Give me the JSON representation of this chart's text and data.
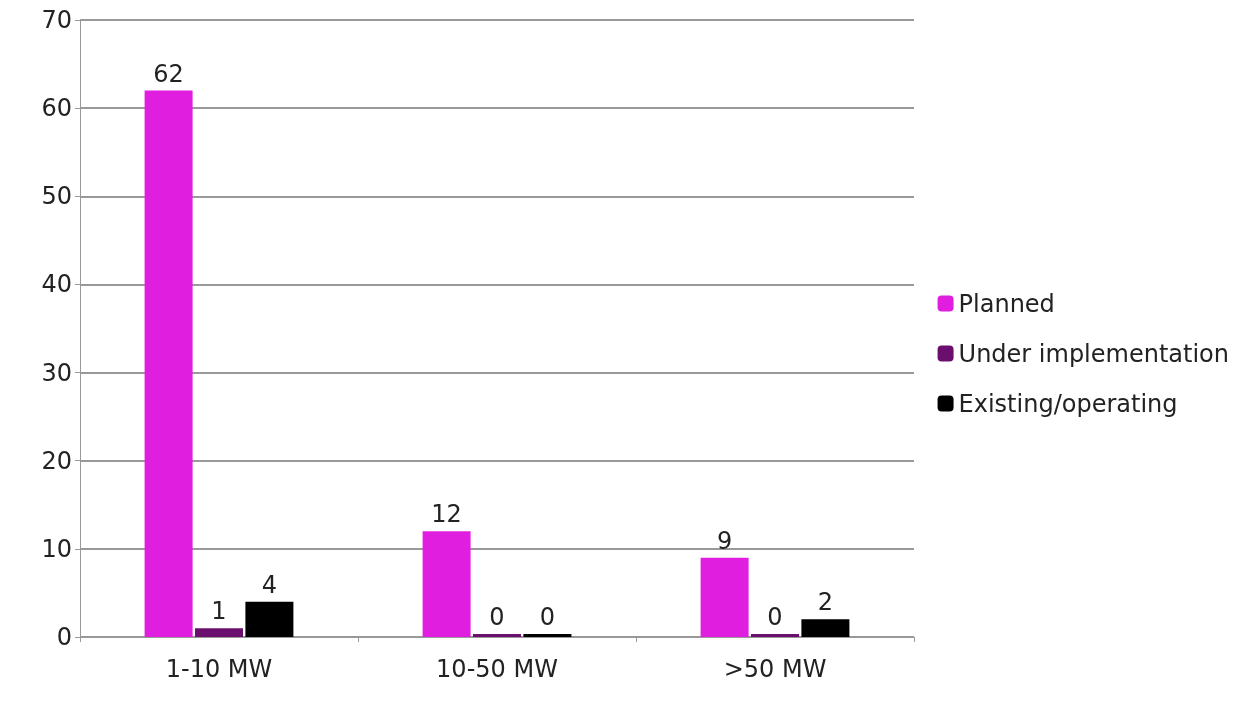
{
  "chart_data": {
    "type": "bar",
    "categories": [
      "1-10 MW",
      "10-50 MW",
      ">50 MW"
    ],
    "series": [
      {
        "name": "Planned",
        "color": "#e01ee0",
        "values": [
          62,
          12,
          9
        ]
      },
      {
        "name": "Under implementation",
        "color": "#6b0f6e",
        "values": [
          1,
          0,
          0
        ]
      },
      {
        "name": "Existing/operating",
        "color": "#000000",
        "values": [
          4,
          0,
          2
        ]
      }
    ],
    "ylim": [
      0,
      70
    ],
    "yticks": [
      0,
      10,
      20,
      30,
      40,
      50,
      60,
      70
    ],
    "grid": "y",
    "legend": "right",
    "data_labels": true
  }
}
